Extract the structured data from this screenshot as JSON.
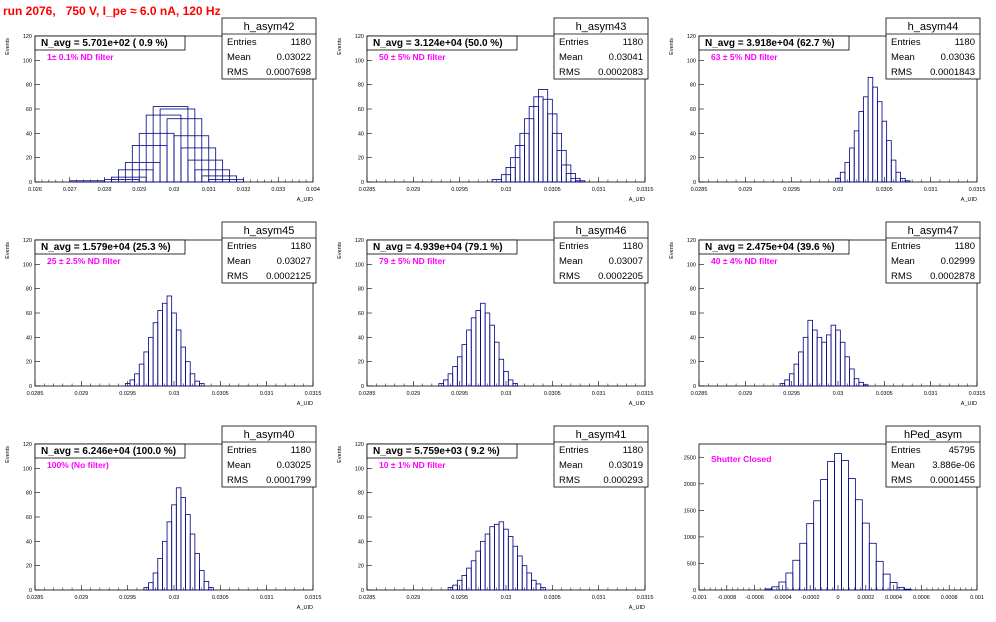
{
  "page_title": "run 2076,   750 V, I_pe ≈ 6.0 nA, 120 Hz",
  "hist_color": "#000080",
  "filter_color": "#ff00ff",
  "title_color": "#ff0000",
  "chart_data": [
    {
      "type": "histogram",
      "name": "h_asym42",
      "navg": "N_avg = 5.701e+02 ( 0.9 %)",
      "filter": "1± 0.1% ND filter",
      "stats": [
        [
          "Entries",
          "1180"
        ],
        [
          "Mean",
          "0.03022"
        ],
        [
          "RMS",
          "0.0007698"
        ]
      ],
      "ylabel": "Events",
      "xlabel": "A_UID",
      "xlim": [
        0.026,
        0.034
      ],
      "ylim": [
        0,
        120
      ],
      "xticks": [
        "0.026",
        "0.027",
        "0.028",
        "0.029",
        "0.03",
        "0.031",
        "0.032",
        "0.033",
        "0.034"
      ],
      "yticks": [
        "0",
        "20",
        "40",
        "60",
        "80",
        "100",
        "120"
      ],
      "bins": [
        [
          0.0275,
          1
        ],
        [
          0.0285,
          2
        ],
        [
          0.0287,
          4
        ],
        [
          0.0289,
          10
        ],
        [
          0.0291,
          16
        ],
        [
          0.0293,
          30
        ],
        [
          0.0295,
          40
        ],
        [
          0.0297,
          55
        ],
        [
          0.0299,
          62
        ],
        [
          0.0301,
          60
        ],
        [
          0.0303,
          52
        ],
        [
          0.0305,
          38
        ],
        [
          0.0307,
          28
        ],
        [
          0.0309,
          18
        ],
        [
          0.0311,
          10
        ],
        [
          0.0313,
          5
        ],
        [
          0.0315,
          2
        ]
      ]
    },
    {
      "type": "histogram",
      "name": "h_asym43",
      "navg": "N_avg = 3.124e+04 (50.0 %)",
      "filter": "50 ± 5% ND filter",
      "stats": [
        [
          "Entries",
          "1180"
        ],
        [
          "Mean",
          "0.03041"
        ],
        [
          "RMS",
          "0.0002083"
        ]
      ],
      "ylabel": "Events",
      "xlabel": "A_UID",
      "xlim": [
        0.0285,
        0.0315
      ],
      "ylim": [
        0,
        120
      ],
      "xticks": [
        "0.0285",
        "0.029",
        "0.0295",
        "0.03",
        "0.0305",
        "0.031",
        "0.0315"
      ],
      "yticks": [
        "0",
        "20",
        "40",
        "60",
        "80",
        "100",
        "120"
      ],
      "bins": [
        [
          0.0299,
          2
        ],
        [
          0.03,
          6
        ],
        [
          0.03005,
          12
        ],
        [
          0.0301,
          20
        ],
        [
          0.03015,
          30
        ],
        [
          0.0302,
          40
        ],
        [
          0.03025,
          52
        ],
        [
          0.0303,
          62
        ],
        [
          0.03035,
          70
        ],
        [
          0.0304,
          76
        ],
        [
          0.03045,
          68
        ],
        [
          0.0305,
          56
        ],
        [
          0.03055,
          40
        ],
        [
          0.0306,
          26
        ],
        [
          0.03065,
          14
        ],
        [
          0.0307,
          7
        ],
        [
          0.03075,
          3
        ],
        [
          0.0308,
          1
        ]
      ]
    },
    {
      "type": "histogram",
      "name": "h_asym44",
      "navg": "N_avg = 3.918e+04 (62.7 %)",
      "filter": "63 ± 5% ND filter",
      "stats": [
        [
          "Entries",
          "1180"
        ],
        [
          "Mean",
          "0.03036"
        ],
        [
          "RMS",
          "0.0001843"
        ]
      ],
      "ylabel": "Events",
      "xlabel": "A_UID",
      "xlim": [
        0.0285,
        0.0315
      ],
      "ylim": [
        0,
        120
      ],
      "xticks": [
        "0.0285",
        "0.029",
        "0.0295",
        "0.03",
        "0.0305",
        "0.031",
        "0.0315"
      ],
      "yticks": [
        "0",
        "20",
        "40",
        "60",
        "80",
        "100",
        "120"
      ],
      "bins": [
        [
          0.03,
          3
        ],
        [
          0.03005,
          8
        ],
        [
          0.0301,
          16
        ],
        [
          0.03015,
          28
        ],
        [
          0.0302,
          42
        ],
        [
          0.03025,
          58
        ],
        [
          0.0303,
          70
        ],
        [
          0.03035,
          86
        ],
        [
          0.0304,
          78
        ],
        [
          0.03045,
          66
        ],
        [
          0.0305,
          50
        ],
        [
          0.03055,
          34
        ],
        [
          0.0306,
          18
        ],
        [
          0.03065,
          8
        ],
        [
          0.0307,
          3
        ],
        [
          0.03075,
          1
        ]
      ]
    },
    {
      "type": "histogram",
      "name": "h_asym45",
      "navg": "N_avg = 1.579e+04 (25.3 %)",
      "filter": "25 ± 2.5% ND filter",
      "stats": [
        [
          "Entries",
          "1180"
        ],
        [
          "Mean",
          "0.03027"
        ],
        [
          "RMS",
          "0.0002125"
        ]
      ],
      "ylabel": "Events",
      "xlabel": "A_UID",
      "xlim": [
        0.0285,
        0.0315
      ],
      "ylim": [
        0,
        120
      ],
      "xticks": [
        "0.0285",
        "0.029",
        "0.0295",
        "0.03",
        "0.0305",
        "0.031",
        "0.0315"
      ],
      "yticks": [
        "0",
        "20",
        "40",
        "60",
        "80",
        "100",
        "120"
      ],
      "bins": [
        [
          0.0295,
          2
        ],
        [
          0.02955,
          5
        ],
        [
          0.0296,
          10
        ],
        [
          0.02965,
          18
        ],
        [
          0.0297,
          28
        ],
        [
          0.02975,
          40
        ],
        [
          0.0298,
          52
        ],
        [
          0.02985,
          62
        ],
        [
          0.0299,
          68
        ],
        [
          0.02995,
          74
        ],
        [
          0.03,
          60
        ],
        [
          0.03005,
          46
        ],
        [
          0.0301,
          32
        ],
        [
          0.03015,
          20
        ],
        [
          0.0302,
          10
        ],
        [
          0.03025,
          4
        ],
        [
          0.0303,
          2
        ]
      ]
    },
    {
      "type": "histogram",
      "name": "h_asym46",
      "navg": "N_avg = 4.939e+04 (79.1 %)",
      "filter": "79 ± 5% ND filter",
      "stats": [
        [
          "Entries",
          "1180"
        ],
        [
          "Mean",
          "0.03007"
        ],
        [
          "RMS",
          "0.0002205"
        ]
      ],
      "ylabel": "Events",
      "xlabel": "A_UID",
      "xlim": [
        0.0285,
        0.0315
      ],
      "ylim": [
        0,
        120
      ],
      "xticks": [
        "0.0285",
        "0.029",
        "0.0295",
        "0.03",
        "0.0305",
        "0.031",
        "0.0315"
      ],
      "yticks": [
        "0",
        "20",
        "40",
        "60",
        "80",
        "100",
        "120"
      ],
      "bins": [
        [
          0.0293,
          2
        ],
        [
          0.02935,
          5
        ],
        [
          0.0294,
          10
        ],
        [
          0.02945,
          16
        ],
        [
          0.0295,
          24
        ],
        [
          0.02955,
          34
        ],
        [
          0.0296,
          46
        ],
        [
          0.02965,
          56
        ],
        [
          0.0297,
          62
        ],
        [
          0.02975,
          68
        ],
        [
          0.0298,
          60
        ],
        [
          0.02985,
          50
        ],
        [
          0.0299,
          36
        ],
        [
          0.02995,
          22
        ],
        [
          0.03,
          12
        ],
        [
          0.03005,
          5
        ],
        [
          0.0301,
          2
        ]
      ]
    },
    {
      "type": "histogram",
      "name": "h_asym47",
      "navg": "N_avg = 2.475e+04 (39.6 %)",
      "filter": "40 ± 4% ND filter",
      "stats": [
        [
          "Entries",
          "1180"
        ],
        [
          "Mean",
          "0.02999"
        ],
        [
          "RMS",
          "0.0002878"
        ]
      ],
      "ylabel": "Events",
      "xlabel": "A_UID",
      "xlim": [
        0.0285,
        0.0315
      ],
      "ylim": [
        0,
        120
      ],
      "xticks": [
        "0.0285",
        "0.029",
        "0.0295",
        "0.03",
        "0.0305",
        "0.031",
        "0.0315"
      ],
      "yticks": [
        "0",
        "20",
        "40",
        "60",
        "80",
        "100",
        "120"
      ],
      "bins": [
        [
          0.0294,
          2
        ],
        [
          0.02945,
          5
        ],
        [
          0.0295,
          10
        ],
        [
          0.02955,
          18
        ],
        [
          0.0296,
          28
        ],
        [
          0.02965,
          40
        ],
        [
          0.0297,
          54
        ],
        [
          0.02975,
          46
        ],
        [
          0.0298,
          40
        ],
        [
          0.02985,
          36
        ],
        [
          0.0299,
          42
        ],
        [
          0.02995,
          50
        ],
        [
          0.03,
          46
        ],
        [
          0.03005,
          36
        ],
        [
          0.0301,
          24
        ],
        [
          0.03015,
          14
        ],
        [
          0.0302,
          6
        ],
        [
          0.03025,
          3
        ],
        [
          0.0303,
          1
        ]
      ]
    },
    {
      "type": "histogram",
      "name": "h_asym40",
      "navg": "N_avg = 6.246e+04 (100.0 %)",
      "filter": "100% (No filter)",
      "stats": [
        [
          "Entries",
          "1180"
        ],
        [
          "Mean",
          "0.03025"
        ],
        [
          "RMS",
          "0.0001799"
        ]
      ],
      "ylabel": "Events",
      "xlabel": "A_UID",
      "xlim": [
        0.0285,
        0.0315
      ],
      "ylim": [
        0,
        120
      ],
      "xticks": [
        "0.0285",
        "0.029",
        "0.0295",
        "0.03",
        "0.0305",
        "0.031",
        "0.0315"
      ],
      "yticks": [
        "0",
        "20",
        "40",
        "60",
        "80",
        "100",
        "120"
      ],
      "bins": [
        [
          0.0297,
          2
        ],
        [
          0.02975,
          6
        ],
        [
          0.0298,
          14
        ],
        [
          0.02985,
          26
        ],
        [
          0.0299,
          40
        ],
        [
          0.02995,
          56
        ],
        [
          0.03,
          70
        ],
        [
          0.03005,
          84
        ],
        [
          0.0301,
          76
        ],
        [
          0.03015,
          62
        ],
        [
          0.0302,
          46
        ],
        [
          0.03025,
          30
        ],
        [
          0.0303,
          16
        ],
        [
          0.03035,
          7
        ],
        [
          0.0304,
          2
        ]
      ]
    },
    {
      "type": "histogram",
      "name": "h_asym41",
      "navg": "N_avg = 5.759e+03 ( 9.2 %)",
      "filter": "10 ± 1% ND filter",
      "stats": [
        [
          "Entries",
          "1180"
        ],
        [
          "Mean",
          "0.03019"
        ],
        [
          "RMS",
          "0.000293"
        ]
      ],
      "ylabel": "Events",
      "xlabel": "A_UID",
      "xlim": [
        0.0285,
        0.0315
      ],
      "ylim": [
        0,
        120
      ],
      "xticks": [
        "0.0285",
        "0.029",
        "0.0295",
        "0.03",
        "0.0305",
        "0.031",
        "0.0315"
      ],
      "yticks": [
        "0",
        "20",
        "40",
        "60",
        "80",
        "100",
        "120"
      ],
      "bins": [
        [
          0.0294,
          2
        ],
        [
          0.02945,
          4
        ],
        [
          0.0295,
          8
        ],
        [
          0.02955,
          12
        ],
        [
          0.0296,
          18
        ],
        [
          0.02965,
          24
        ],
        [
          0.0297,
          32
        ],
        [
          0.02975,
          40
        ],
        [
          0.0298,
          46
        ],
        [
          0.02985,
          52
        ],
        [
          0.0299,
          54
        ],
        [
          0.02995,
          56
        ],
        [
          0.03,
          50
        ],
        [
          0.03005,
          44
        ],
        [
          0.0301,
          36
        ],
        [
          0.03015,
          28
        ],
        [
          0.0302,
          20
        ],
        [
          0.03025,
          14
        ],
        [
          0.0303,
          8
        ],
        [
          0.03035,
          5
        ],
        [
          0.0304,
          2
        ]
      ]
    },
    {
      "type": "histogram",
      "name": "hPed_asym",
      "navg": "",
      "filter": "Shutter Closed",
      "stats": [
        [
          "Entries",
          "45795"
        ],
        [
          "Mean",
          "3.886e-06"
        ],
        [
          "RMS",
          "0.0001455"
        ]
      ],
      "ylabel": "",
      "xlabel": "",
      "xlim": [
        -0.001,
        0.001
      ],
      "ylim": [
        0,
        2750
      ],
      "xticks": [
        "-0.001",
        "-0.0008",
        "-0.0006",
        "-0.0004",
        "-0.0002",
        "0",
        "0.0002",
        "0.0004",
        "0.0006",
        "0.0008",
        "0.001"
      ],
      "yticks": [
        "0",
        "500",
        "1000",
        "1500",
        "2000",
        "2500"
      ],
      "bins": [
        [
          -0.0005,
          20
        ],
        [
          -0.00045,
          60
        ],
        [
          -0.0004,
          150
        ],
        [
          -0.00035,
          320
        ],
        [
          -0.0003,
          560
        ],
        [
          -0.00025,
          880
        ],
        [
          -0.0002,
          1250
        ],
        [
          -0.00015,
          1680
        ],
        [
          -0.0001,
          2080
        ],
        [
          -5e-05,
          2420
        ],
        [
          0,
          2570
        ],
        [
          5e-05,
          2440
        ],
        [
          0.0001,
          2100
        ],
        [
          0.00015,
          1700
        ],
        [
          0.0002,
          1260
        ],
        [
          0.00025,
          880
        ],
        [
          0.0003,
          540
        ],
        [
          0.00035,
          300
        ],
        [
          0.0004,
          140
        ],
        [
          0.00045,
          50
        ],
        [
          0.0005,
          15
        ]
      ]
    }
  ]
}
